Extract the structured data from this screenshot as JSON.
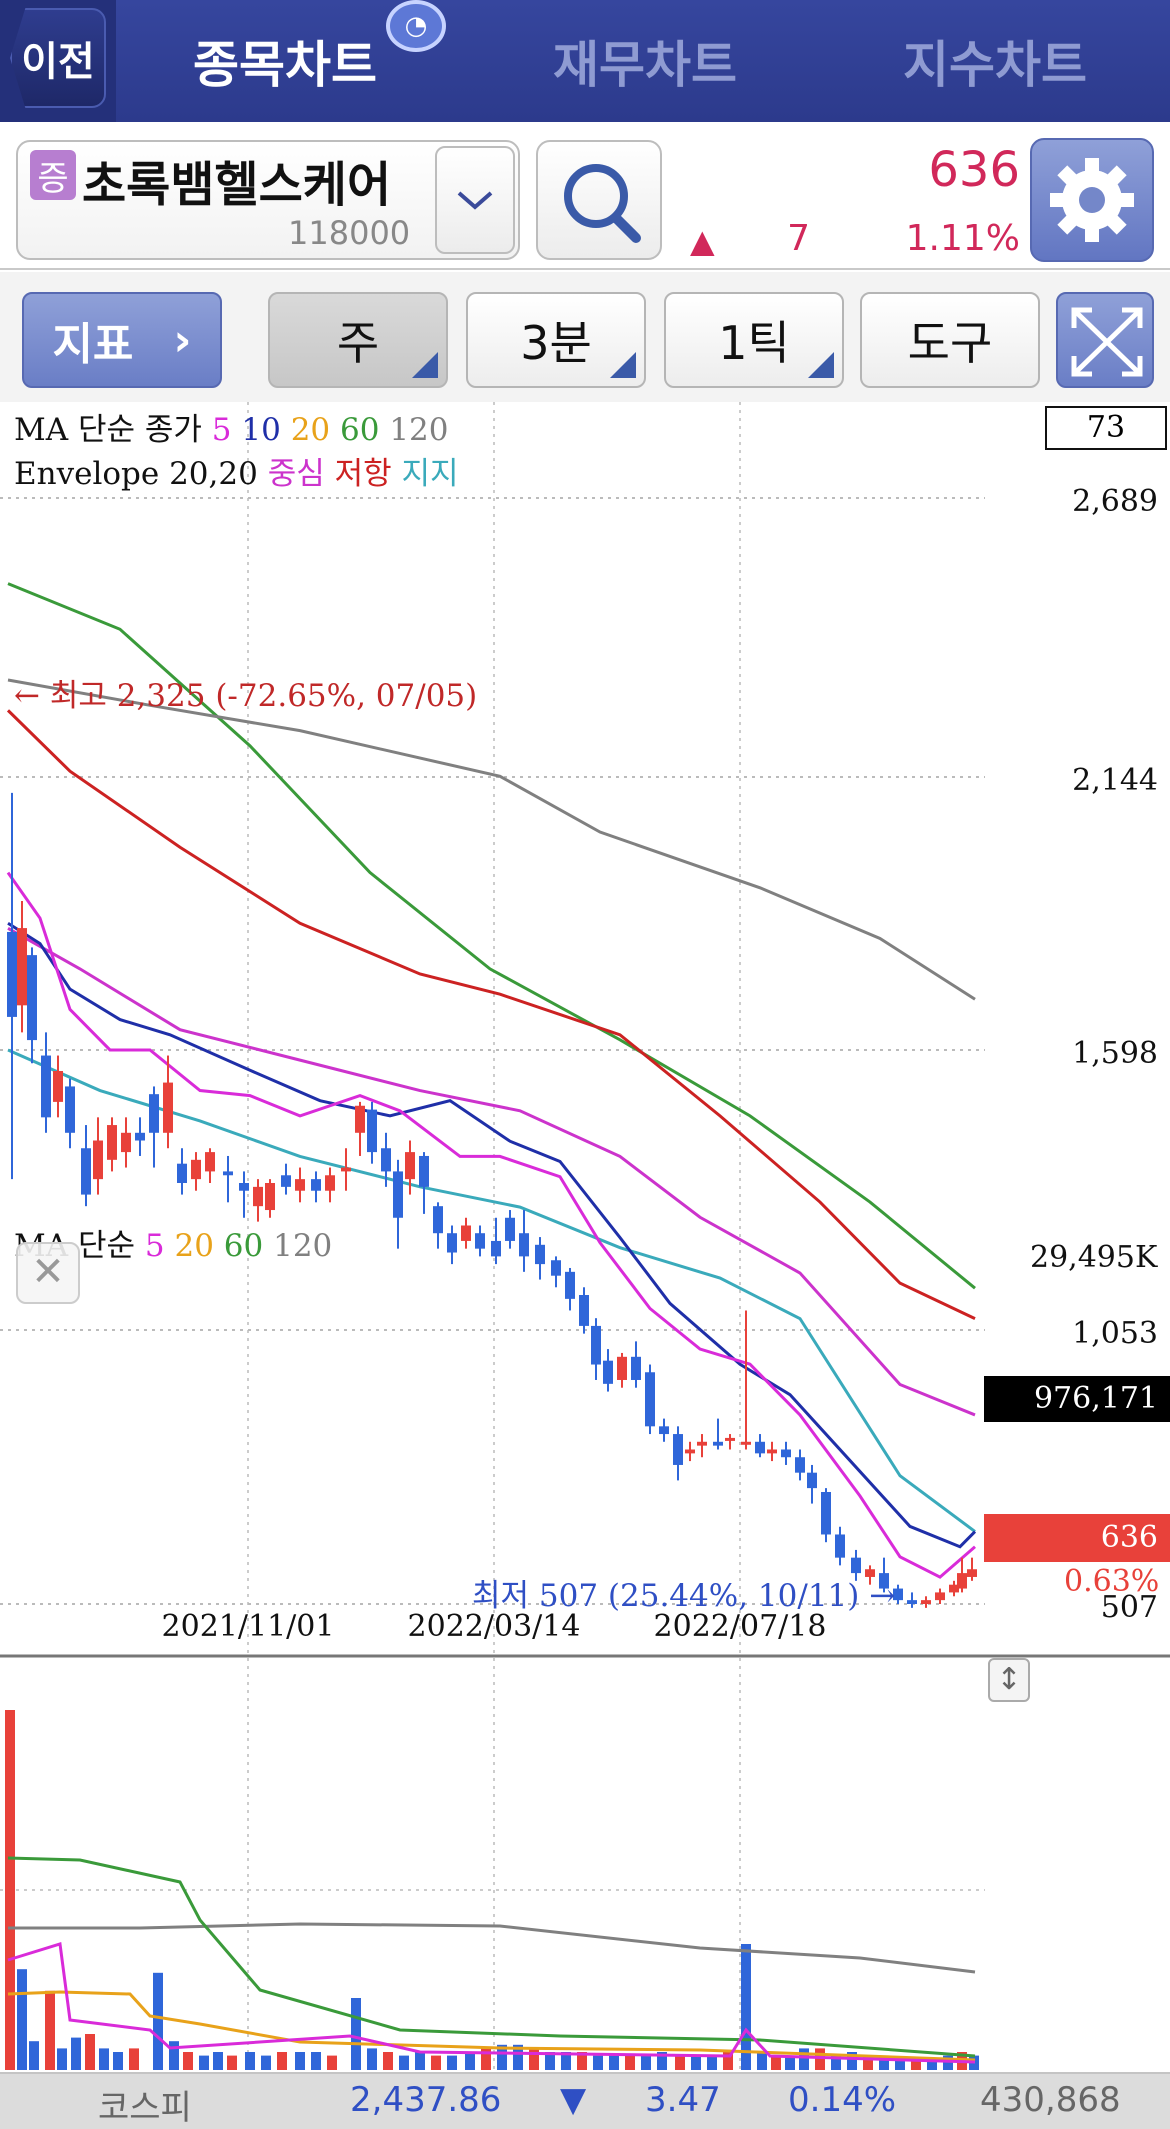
{
  "header": {
    "back_label": "이전",
    "tabs": [
      {
        "label": "종목차트",
        "active": true
      },
      {
        "label": "재무차트",
        "active": false
      },
      {
        "label": "지수차트",
        "active": false
      }
    ],
    "badge_icon": "timer-badge-icon"
  },
  "stock": {
    "market_badge": "증",
    "name": "초록뱀헬스케어",
    "code": "118000",
    "price": "636",
    "change": "7",
    "change_pct": "1.11%",
    "direction_icon": "up-triangle-icon"
  },
  "toolbar": {
    "indicator_label": "지표",
    "period_week": "주",
    "interval_label": "3분",
    "tick_label": "1틱",
    "tools_label": "도구"
  },
  "legend": {
    "ma_title": "MA 단순 종가",
    "ma_periods": [
      "5",
      "10",
      "20",
      "60",
      "120"
    ],
    "env_title": "Envelope 20,20",
    "env_center": "중심",
    "env_resist": "저항",
    "env_support": "지지",
    "vol_title": "MA 단순",
    "vol_periods": [
      "5",
      "20",
      "60",
      "120"
    ]
  },
  "colors": {
    "ma5": "#d92bd9",
    "ma10": "#1f2fa8",
    "ma20": "#e8a21a",
    "ma60": "#3a9a3a",
    "ma120": "#808080",
    "up": "#e8413a",
    "down": "#2f66d9",
    "env_center": "#cc33cc",
    "env_resist": "#cc2222",
    "env_support": "#3aaabb"
  },
  "chart_data": {
    "type": "candlestick",
    "y_ticks": [
      "2,689",
      "2,144",
      "1,598",
      "1,053",
      "507"
    ],
    "x_ticks": [
      "2021/11/01",
      "2022/03/14",
      "2022/07/18"
    ],
    "top_box_value": "73",
    "current_price_label": "636",
    "current_pct_label": "0.63%",
    "high_annotation": "← 최고 2,325 (-72.65%, 07/05)",
    "low_annotation": "최저 507 (25.44%, 10/11) →",
    "volume": {
      "y_top_label": "29,495K",
      "current_label": "976,171"
    }
  },
  "footer": {
    "index_name": "코스피",
    "index_value": "2,437.86",
    "index_change": "3.47",
    "index_pct": "0.14%",
    "index_volume": "430,868"
  }
}
